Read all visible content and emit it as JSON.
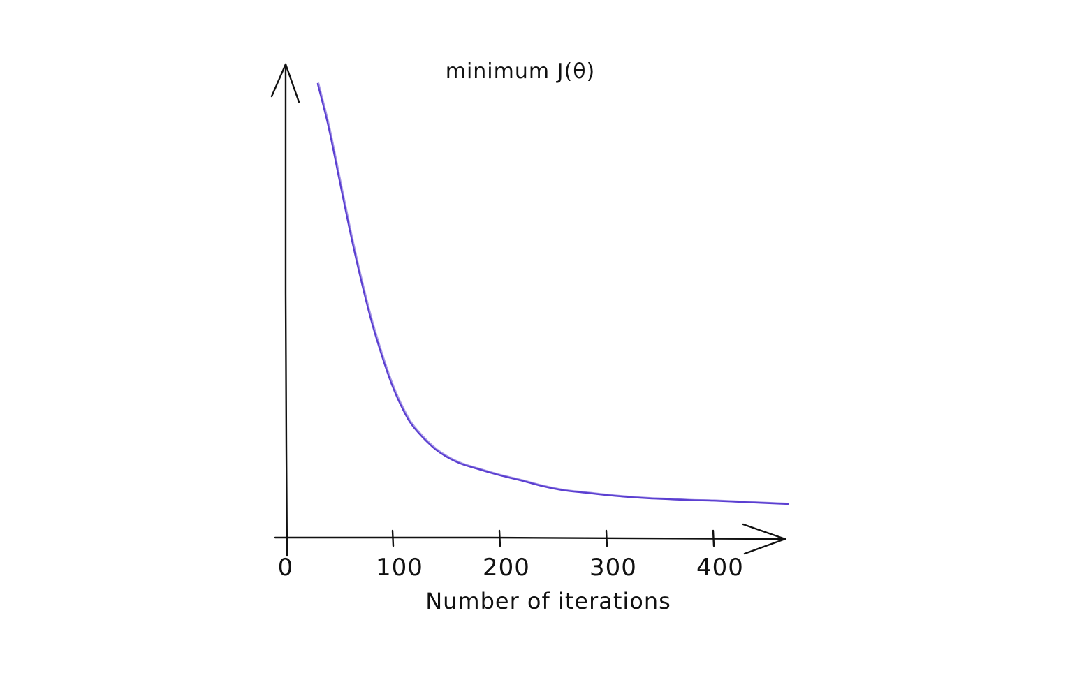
{
  "chart_data": {
    "type": "line",
    "title": "minimum J(θ)",
    "xlabel": "Number of iterations",
    "ylabel": "",
    "x_ticks": [
      0,
      100,
      200,
      300,
      400
    ],
    "x_tick_labels": [
      "0",
      "100",
      "200",
      "300",
      "400"
    ],
    "xlim": [
      0,
      470
    ],
    "y_ticks": [],
    "grid": false,
    "legend": "none",
    "series": [
      {
        "color": "#5b3fd1",
        "x": [
          30,
          40,
          50,
          60,
          70,
          80,
          90,
          100,
          110,
          120,
          140,
          160,
          180,
          200,
          220,
          240,
          260,
          280,
          300,
          320,
          340,
          360,
          380,
          400,
          420,
          440,
          460,
          470
        ],
        "y": [
          960,
          870,
          760,
          650,
          550,
          460,
          385,
          320,
          270,
          233,
          187,
          160,
          145,
          132,
          121,
          109,
          100,
          95,
          90,
          86,
          83,
          81,
          79,
          78,
          76,
          74,
          72,
          71
        ]
      }
    ]
  }
}
